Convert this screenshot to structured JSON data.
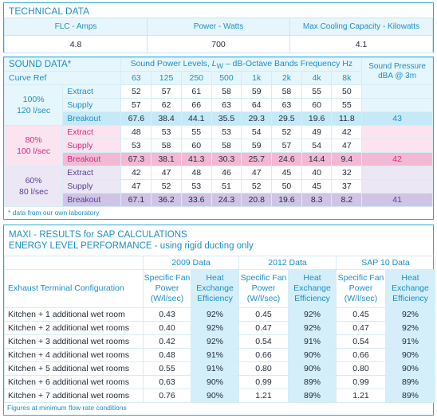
{
  "technical": {
    "title": "TECHNICAL DATA",
    "labels": [
      "FLC - Amps",
      "Power - Watts",
      "Max Cooling Capacity - Kilowatts"
    ],
    "values": [
      "4.8",
      "700",
      "4.1"
    ]
  },
  "sound": {
    "title": "SOUND DATA*",
    "heading_prefix": "Sound Power Levels, ",
    "heading_lw": "L",
    "heading_lw_sub": "W",
    "heading_suffix": " – dB-Octave Bands Frequency Hz",
    "pressure_label": "Sound Pressure dBA @ 3m",
    "curve_ref_label": "Curve Ref",
    "bands": [
      "63",
      "125",
      "250",
      "500",
      "1k",
      "2k",
      "4k",
      "8k"
    ],
    "groups": [
      {
        "pct": "100%",
        "flow": "120 l/sec",
        "rows": [
          {
            "name": "Extract",
            "values": [
              "52",
              "57",
              "61",
              "58",
              "59",
              "58",
              "55",
              "50"
            ],
            "pressure": ""
          },
          {
            "name": "Supply",
            "values": [
              "57",
              "62",
              "66",
              "63",
              "64",
              "63",
              "60",
              "55"
            ],
            "pressure": ""
          },
          {
            "name": "Breakout",
            "values": [
              "67.6",
              "38.4",
              "44.1",
              "35.5",
              "29.3",
              "29.5",
              "19.6",
              "11.8"
            ],
            "pressure": "43"
          }
        ]
      },
      {
        "pct": "80%",
        "flow": "100 l/sec",
        "rows": [
          {
            "name": "Extract",
            "values": [
              "48",
              "53",
              "55",
              "53",
              "54",
              "52",
              "49",
              "42"
            ],
            "pressure": ""
          },
          {
            "name": "Supply",
            "values": [
              "53",
              "58",
              "60",
              "58",
              "59",
              "57",
              "54",
              "47"
            ],
            "pressure": ""
          },
          {
            "name": "Breakout",
            "values": [
              "67.3",
              "38.1",
              "41.3",
              "30.3",
              "25.7",
              "24.6",
              "14.4",
              "9.4"
            ],
            "pressure": "42"
          }
        ]
      },
      {
        "pct": "60%",
        "flow": "80 l/sec",
        "rows": [
          {
            "name": "Extract",
            "values": [
              "42",
              "47",
              "48",
              "46",
              "47",
              "45",
              "40",
              "32"
            ],
            "pressure": ""
          },
          {
            "name": "Supply",
            "values": [
              "47",
              "52",
              "53",
              "51",
              "52",
              "50",
              "45",
              "37"
            ],
            "pressure": ""
          },
          {
            "name": "Breakout",
            "values": [
              "67.1",
              "36.2",
              "33.6",
              "24.3",
              "20.8",
              "19.6",
              "8.3",
              "8.2"
            ],
            "pressure": "41"
          }
        ]
      }
    ],
    "note": "* data from our own laboratory"
  },
  "maxi": {
    "title1": "MAXI - RESULTS for SAP CALCULATIONS",
    "title2": "ENERGY LEVEL PERFORMANCE - using rigid ducting only",
    "data_sets": [
      "2009 Data",
      "2012 Data",
      "SAP 10 Data"
    ],
    "row_header": "Exhaust Terminal Configuration",
    "col_sfp": "Specific Fan Power (W/l/sec)",
    "col_hee": "Heat Exchange Efficiency",
    "rows": [
      {
        "config": "Kitchen + 1 additional wet room",
        "v": [
          "0.43",
          "92%",
          "0.45",
          "92%",
          "0.45",
          "92%"
        ]
      },
      {
        "config": "Kitchen + 2 additional wet rooms",
        "v": [
          "0.40",
          "92%",
          "0.47",
          "92%",
          "0.47",
          "92%"
        ]
      },
      {
        "config": "Kitchen + 3 additional wet rooms",
        "v": [
          "0.42",
          "92%",
          "0.54",
          "91%",
          "0.54",
          "91%"
        ]
      },
      {
        "config": "Kitchen + 4 additional wet rooms",
        "v": [
          "0.48",
          "91%",
          "0.66",
          "90%",
          "0.66",
          "90%"
        ]
      },
      {
        "config": "Kitchen + 5 additional wet rooms",
        "v": [
          "0.55",
          "91%",
          "0.80",
          "90%",
          "0.80",
          "90%"
        ]
      },
      {
        "config": "Kitchen + 6 additional wet rooms",
        "v": [
          "0.63",
          "90%",
          "0.99",
          "89%",
          "0.99",
          "89%"
        ]
      },
      {
        "config": "Kitchen + 7 additional wet rooms",
        "v": [
          "0.76",
          "90%",
          "1.21",
          "89%",
          "1.21",
          "89%"
        ]
      }
    ],
    "footnote": "Figures at minimum flow rate conditions"
  }
}
